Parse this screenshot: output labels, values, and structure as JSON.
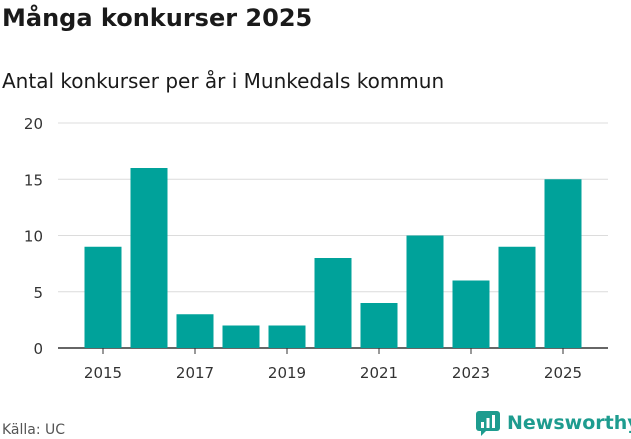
{
  "header": {
    "title": "Många konkurser 2025",
    "subtitle": "Antal konkurser per år i Munkedals kommun"
  },
  "footer": {
    "source": "Källa: UC",
    "brand": "Newsworthy"
  },
  "colors": {
    "bar": "#00a29a",
    "grid": "#dcdcdc",
    "axis": "#333333",
    "brand": "#1e9c8f"
  },
  "chart_data": {
    "type": "bar",
    "categories": [
      "2015",
      "2016",
      "2017",
      "2018",
      "2019",
      "2020",
      "2021",
      "2022",
      "2023",
      "2024",
      "2025"
    ],
    "values": [
      9,
      16,
      3,
      2,
      2,
      8,
      4,
      10,
      6,
      9,
      15
    ],
    "x_tick_labels": [
      "2015",
      "2017",
      "2019",
      "2021",
      "2023",
      "2025"
    ],
    "y_ticks": [
      0,
      5,
      10,
      15,
      20
    ],
    "ylim": [
      0,
      20
    ],
    "grid": true,
    "legend": "none"
  }
}
